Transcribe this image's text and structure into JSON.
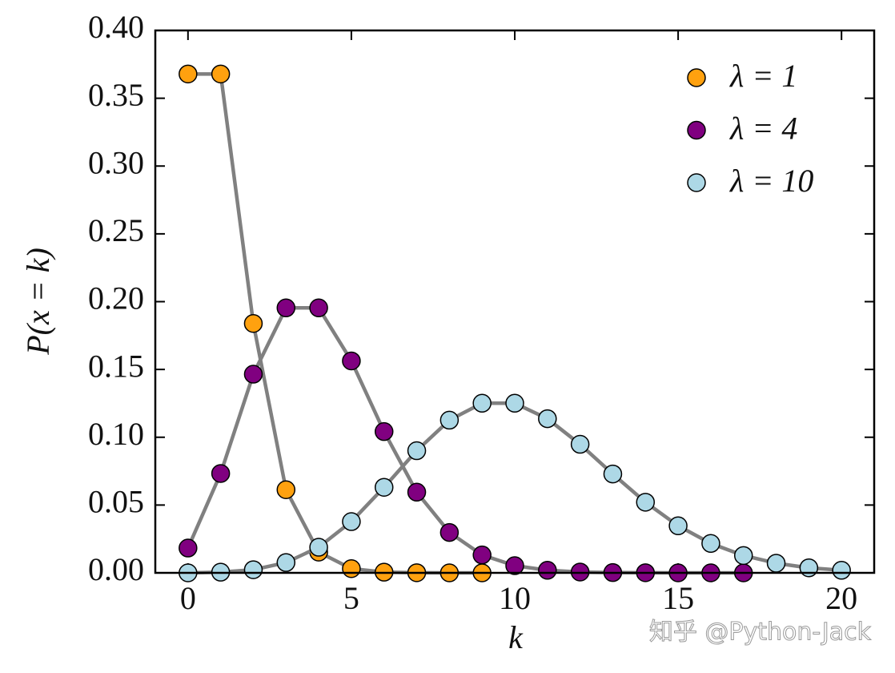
{
  "chart_data": {
    "type": "line",
    "xlabel": "k",
    "ylabel": "P(x = k)",
    "xlim": [
      -1,
      21
    ],
    "ylim": [
      0,
      0.4
    ],
    "xticks": [
      0,
      5,
      10,
      15,
      20
    ],
    "yticks": [
      {
        "value": 0,
        "label": "0.00"
      },
      0.05,
      {
        "value": 0.1,
        "label": "0.10"
      },
      0.15,
      {
        "value": 0.2,
        "label": "0.20"
      },
      0.25,
      {
        "value": 0.3,
        "label": "0.30"
      },
      0.35,
      {
        "value": 0.4,
        "label": "0.40"
      }
    ],
    "line_color": "#808080",
    "legend": "upper right",
    "series": [
      {
        "name": "λ = 1",
        "color": "#ffa10f",
        "x": [
          0,
          1,
          2,
          3,
          4,
          5,
          6,
          7,
          8,
          9
        ],
        "values": [
          0.3679,
          0.3679,
          0.1839,
          0.0613,
          0.0153,
          0.0031,
          0.0005,
          0.0001,
          0,
          0
        ]
      },
      {
        "name": "λ = 4",
        "color": "#800080",
        "x": [
          0,
          1,
          2,
          3,
          4,
          5,
          6,
          7,
          8,
          9,
          10,
          11,
          12,
          13,
          14,
          15,
          16,
          17
        ],
        "values": [
          0.0183,
          0.0733,
          0.1465,
          0.1954,
          0.1954,
          0.1563,
          0.1042,
          0.0595,
          0.0298,
          0.0132,
          0.0053,
          0.0019,
          0.0006,
          0.0002,
          0.0001,
          0,
          0,
          0
        ]
      },
      {
        "name": "λ = 10",
        "color": "#add8e6",
        "x": [
          0,
          1,
          2,
          3,
          4,
          5,
          6,
          7,
          8,
          9,
          10,
          11,
          12,
          13,
          14,
          15,
          16,
          17,
          18,
          19,
          20
        ],
        "values": [
          0,
          0.0005,
          0.0023,
          0.0076,
          0.0189,
          0.0378,
          0.0631,
          0.0901,
          0.1126,
          0.1251,
          0.1251,
          0.1137,
          0.0948,
          0.0729,
          0.0521,
          0.0347,
          0.0217,
          0.0128,
          0.0071,
          0.0037,
          0.0019
        ]
      }
    ],
    "watermark": "知乎 @Python-Jack"
  }
}
